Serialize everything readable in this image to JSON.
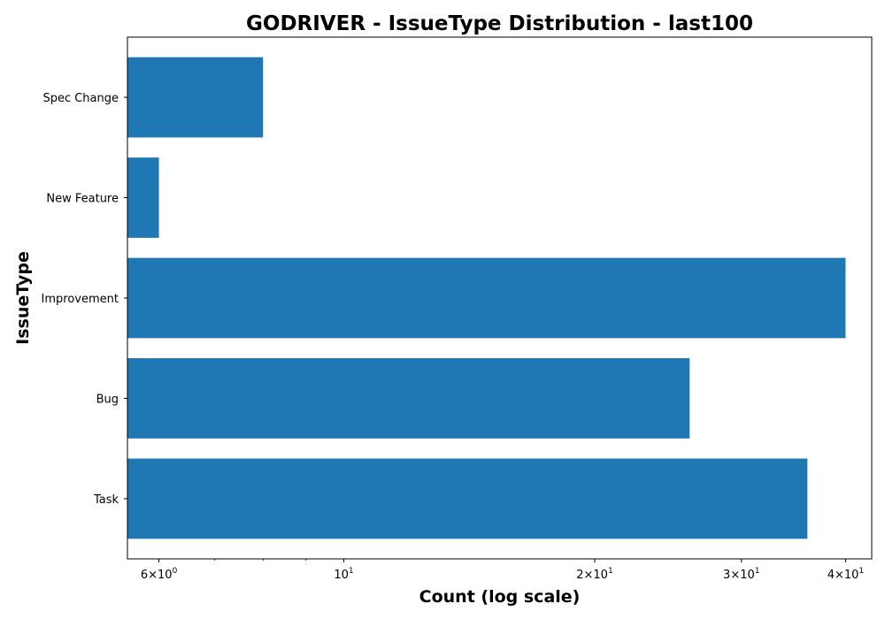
{
  "chart_data": {
    "type": "bar",
    "orientation": "horizontal",
    "title": "GODRIVER - IssueType Distribution - last100",
    "xlabel": "Count (log scale)",
    "ylabel": "IssueType",
    "x_scale": "log",
    "xlim": [
      5.5,
      43
    ],
    "categories": [
      "Task",
      "Bug",
      "Improvement",
      "New Feature",
      "Spec Change"
    ],
    "values": [
      36,
      26,
      40,
      6,
      8
    ],
    "bar_color": "#1f77b4",
    "major_ticks": [
      {
        "value": 6,
        "base": "6×10",
        "exp": "0"
      },
      {
        "value": 10,
        "base": "10",
        "exp": "1"
      },
      {
        "value": 20,
        "base": "2×10",
        "exp": "1"
      },
      {
        "value": 30,
        "base": "3×10",
        "exp": "1"
      },
      {
        "value": 40,
        "base": "4×10",
        "exp": "1"
      }
    ],
    "minor_ticks": [
      7,
      8,
      9
    ],
    "grid": false,
    "legend": "none"
  }
}
